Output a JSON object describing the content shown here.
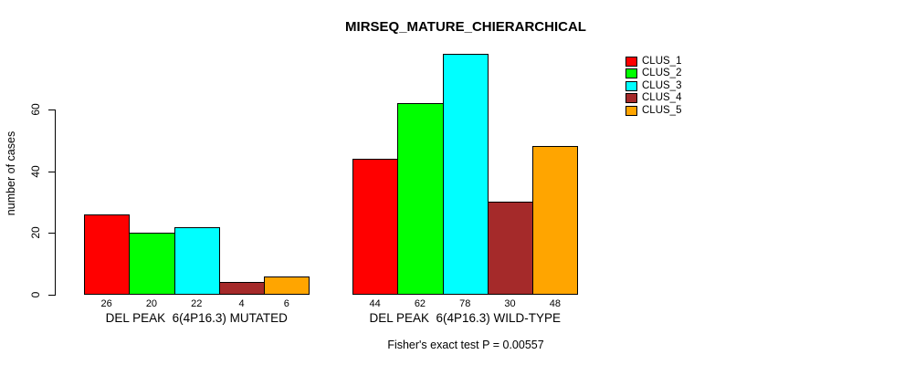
{
  "chart_data": {
    "type": "bar",
    "title": "MIRSEQ_MATURE_CHIERARCHICAL",
    "xlabel": "",
    "ylabel": "number of cases",
    "annotation": "Fisher's exact test P = 0.00557",
    "categories": [
      "DEL PEAK  6(4P16.3) MUTATED",
      "DEL PEAK  6(4P16.3) WILD-TYPE"
    ],
    "series": [
      {
        "name": "CLUS_1",
        "color": "#FF0000",
        "values": [
          26,
          44
        ]
      },
      {
        "name": "CLUS_2",
        "color": "#00FF00",
        "values": [
          20,
          62
        ]
      },
      {
        "name": "CLUS_3",
        "color": "#00FFFF",
        "values": [
          22,
          78
        ]
      },
      {
        "name": "CLUS_4",
        "color": "#A52A2A",
        "values": [
          4,
          30
        ]
      },
      {
        "name": "CLUS_5",
        "color": "#FFA500",
        "values": [
          6,
          48
        ]
      }
    ],
    "bar_value_labels": [
      [
        26,
        20,
        22,
        4,
        6
      ],
      [
        44,
        62,
        78,
        30,
        48
      ]
    ],
    "yticks": [
      0,
      20,
      40,
      60
    ],
    "ylim": [
      0,
      80
    ],
    "grid": false,
    "legend_position": "right",
    "bar_border_color": "#000000",
    "text_color": "#000000"
  }
}
